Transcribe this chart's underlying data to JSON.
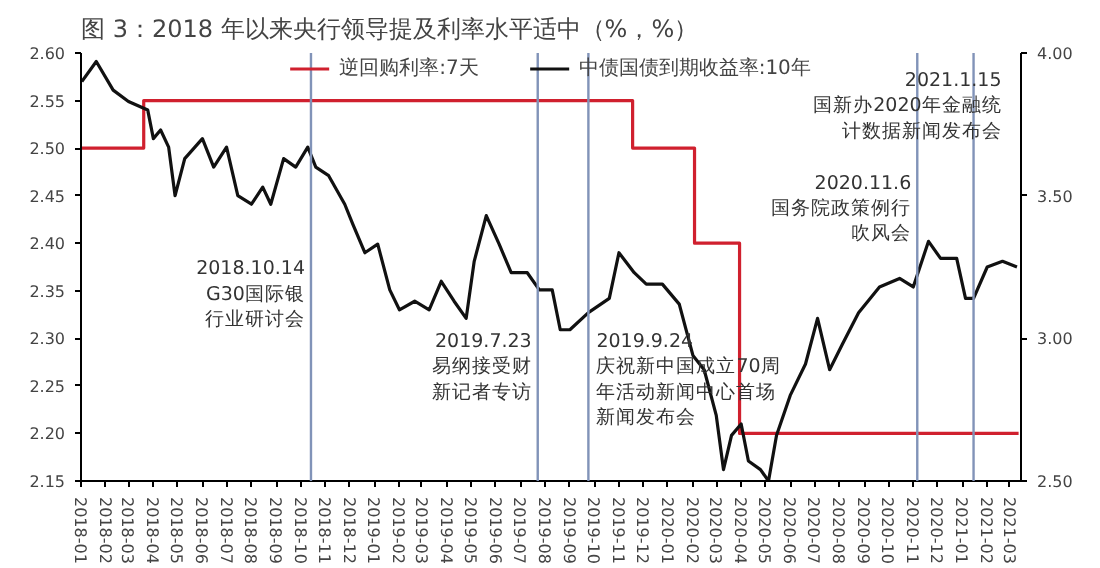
{
  "chart_data": {
    "type": "line",
    "title": "图 3：2018 年以来央行领导提及利率水平适中（%，%）",
    "series": [
      {
        "name": "逆回购利率:7天",
        "type": "step",
        "color": "#d0202e",
        "x": [
          "2018-01-01",
          "2018-03-20",
          "2019-11-18",
          "2020-02-03",
          "2020-03-30",
          "2021-03-12"
        ],
        "values": [
          2.5,
          2.55,
          2.5,
          2.4,
          2.2,
          2.2
        ]
      },
      {
        "name": "中债国债到期收益率:10年",
        "axis": "y2",
        "color": "#111111",
        "x": [
          "2018-01-02",
          "2018-01-20",
          "2018-02-10",
          "2018-03-01",
          "2018-03-25",
          "2018-04-01",
          "2018-04-10",
          "2018-04-20",
          "2018-04-28",
          "2018-05-10",
          "2018-06-01",
          "2018-06-15",
          "2018-07-01",
          "2018-07-15",
          "2018-08-01",
          "2018-08-15",
          "2018-08-25",
          "2018-09-10",
          "2018-09-25",
          "2018-10-10",
          "2018-10-20",
          "2018-11-05",
          "2018-11-25",
          "2018-12-05",
          "2018-12-20",
          "2019-01-05",
          "2019-01-20",
          "2019-02-01",
          "2019-02-20",
          "2019-03-10",
          "2019-03-25",
          "2019-04-10",
          "2019-04-25",
          "2019-05-05",
          "2019-05-20",
          "2019-06-05",
          "2019-06-20",
          "2019-07-10",
          "2019-07-25",
          "2019-08-10",
          "2019-08-20",
          "2019-09-01",
          "2019-09-24",
          "2019-10-20",
          "2019-11-01",
          "2019-11-20",
          "2019-12-05",
          "2019-12-25",
          "2020-01-15",
          "2020-02-01",
          "2020-02-15",
          "2020-03-01",
          "2020-03-10",
          "2020-03-20",
          "2020-04-01",
          "2020-04-10",
          "2020-04-25",
          "2020-05-05",
          "2020-05-15",
          "2020-06-01",
          "2020-06-20",
          "2020-07-05",
          "2020-07-20",
          "2020-08-05",
          "2020-08-25",
          "2020-09-20",
          "2020-10-15",
          "2020-11-01",
          "2020-11-20",
          "2020-12-05",
          "2020-12-25",
          "2021-01-05",
          "2021-01-15",
          "2021-02-01",
          "2021-02-20",
          "2021-03-10"
        ],
        "values": [
          3.9,
          3.97,
          3.87,
          3.83,
          3.8,
          3.7,
          3.73,
          3.67,
          3.5,
          3.63,
          3.7,
          3.6,
          3.67,
          3.5,
          3.47,
          3.53,
          3.47,
          3.63,
          3.6,
          3.67,
          3.6,
          3.57,
          3.47,
          3.4,
          3.3,
          3.33,
          3.17,
          3.1,
          3.13,
          3.1,
          3.2,
          3.13,
          3.07,
          3.27,
          3.43,
          3.33,
          3.23,
          3.23,
          3.17,
          3.17,
          3.03,
          3.03,
          3.09,
          3.14,
          3.3,
          3.23,
          3.19,
          3.19,
          3.12,
          2.94,
          2.89,
          2.73,
          2.54,
          2.66,
          2.7,
          2.57,
          2.54,
          2.5,
          2.66,
          2.8,
          2.91,
          3.07,
          2.89,
          2.98,
          3.09,
          3.18,
          3.21,
          3.18,
          3.34,
          3.28,
          3.28,
          3.14,
          3.14,
          3.25,
          3.27,
          3.25
        ]
      }
    ],
    "xlim": [
      "2018-01-01",
      "2021-03-15"
    ],
    "xticks": [
      "2018-01",
      "2018-02",
      "2018-03",
      "2018-04",
      "2018-05",
      "2018-06",
      "2018-07",
      "2018-08",
      "2018-09",
      "2018-10",
      "2018-11",
      "2018-12",
      "2019-01",
      "2019-02",
      "2019-03",
      "2019-04",
      "2019-05",
      "2019-06",
      "2019-07",
      "2019-08",
      "2019-09",
      "2019-10",
      "2019-11",
      "2019-12",
      "2020-01",
      "2020-02",
      "2020-03",
      "2020-04",
      "2020-05",
      "2020-06",
      "2020-07",
      "2020-08",
      "2020-09",
      "2020-10",
      "2020-11",
      "2020-12",
      "2021-01",
      "2021-02",
      "2021-03"
    ],
    "ylim": [
      2.15,
      2.6
    ],
    "yticks": [
      {
        "value": 2.15,
        "label": "2.15"
      },
      {
        "value": 2.2,
        "label": "2.20"
      },
      {
        "value": 2.25,
        "label": "2.25"
      },
      {
        "value": 2.3,
        "label": "2.30"
      },
      {
        "value": 2.35,
        "label": "2.35"
      },
      {
        "value": 2.4,
        "label": "2.40"
      },
      {
        "value": 2.45,
        "label": "2.45"
      },
      {
        "value": 2.5,
        "label": "2.50"
      },
      {
        "value": 2.55,
        "label": "2.55"
      },
      {
        "value": 2.6,
        "label": "2.60"
      }
    ],
    "y2lim": [
      2.5,
      4.0
    ],
    "y2ticks": [
      {
        "value": 2.5,
        "label": "2.50"
      },
      {
        "value": 3.0,
        "label": "3.00"
      },
      {
        "value": 3.5,
        "label": "3.50"
      },
      {
        "value": 4.0,
        "label": "4.00"
      }
    ],
    "ref_lines": [
      {
        "axis": "x",
        "value": "2018-10-14",
        "label": "2018.10.14G30国际银行业研讨会",
        "color": "#8193b8"
      },
      {
        "axis": "x",
        "value": "2019-07-23",
        "label": "2019.7.23易纲接受财新记者专访",
        "color": "#8193b8"
      },
      {
        "axis": "x",
        "value": "2019-09-24",
        "label": "2019.9.24庆祝新中国成立70周年活动新闻中心首场新闻发布会",
        "color": "#8193b8"
      },
      {
        "axis": "x",
        "value": "2020-11-06",
        "label": "2020.11.6国务院政策例行吹风会",
        "color": "#8193b8"
      },
      {
        "axis": "x",
        "value": "2021-01-15",
        "label": "2021.1.15国新办2020年金融统计数据新闻发布会",
        "color": "#8193b8"
      }
    ],
    "legend": "top",
    "grid": false
  }
}
